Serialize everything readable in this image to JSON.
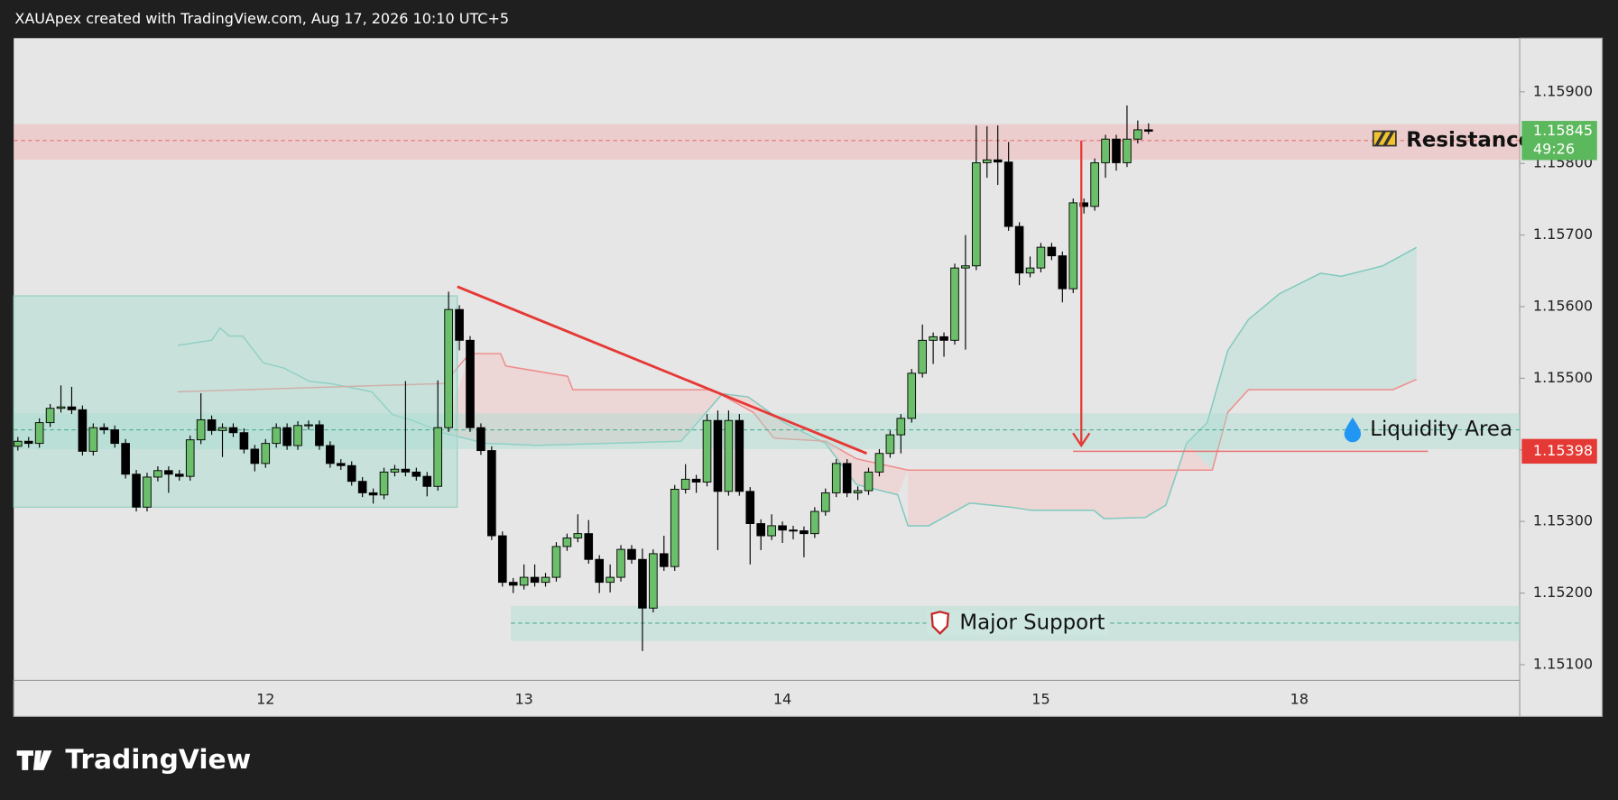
{
  "header": "XAUApex created with TradingView.com, Aug 17, 2026 10:10 UTC+5",
  "logo": "TradingView",
  "chart_data": {
    "type": "candlestick",
    "categories": [
      null,
      null,
      null,
      null,
      null,
      null,
      null,
      null,
      null,
      null,
      null,
      null,
      null,
      null,
      null,
      null,
      null,
      null,
      null,
      null,
      null,
      null,
      null,
      "12",
      null,
      null,
      null,
      null,
      null,
      null,
      null,
      null,
      null,
      null,
      null,
      null,
      null,
      null,
      null,
      null,
      null,
      null,
      null,
      null,
      null,
      null,
      null,
      "13",
      null,
      null,
      null,
      null,
      null,
      null,
      null,
      null,
      null,
      null,
      null,
      null,
      null,
      null,
      null,
      null,
      null,
      null,
      null,
      null,
      null,
      null,
      null,
      "14",
      null,
      null,
      null,
      null,
      null,
      null,
      null,
      null,
      null,
      null,
      null,
      null,
      null,
      null,
      null,
      null,
      null,
      null,
      null,
      null,
      null,
      null,
      null,
      "15",
      null,
      null,
      null,
      null,
      null,
      null,
      null,
      null,
      null,
      null,
      null,
      null,
      null,
      null,
      null,
      null,
      null,
      null,
      null,
      null,
      null,
      null,
      null,
      "18"
    ],
    "open": [
      1.15405,
      1.15412,
      1.15409,
      1.15438,
      1.15458,
      1.1546,
      1.15456,
      1.15398,
      1.15431,
      1.15428,
      1.15409,
      1.15366,
      1.1532,
      1.15362,
      1.15371,
      1.15366,
      1.15363,
      1.15414,
      1.15442,
      1.15427,
      1.15431,
      1.15424,
      1.15401,
      1.15381,
      1.15409,
      1.15431,
      1.15406,
      1.15434,
      1.15435,
      1.15406,
      1.15381,
      1.15378,
      1.15356,
      1.1534,
      1.15337,
      1.15369,
      1.15373,
      1.15369,
      1.15363,
      1.15349,
      1.15431,
      1.15596,
      1.15553,
      1.15431,
      1.15399,
      1.1528,
      1.15215,
      1.15211,
      1.15222,
      1.15215,
      1.15222,
      1.15265,
      1.15277,
      1.15283,
      1.15247,
      1.15215,
      1.15222,
      1.15261,
      1.15247,
      1.15179,
      1.15255,
      1.15237,
      1.15345,
      1.15359,
      1.15355,
      1.15441,
      1.15342,
      1.15441,
      1.15342,
      1.15297,
      1.1528,
      1.15294,
      1.15288,
      1.15287,
      1.15283,
      1.15314,
      1.1534,
      1.15381,
      1.1534,
      1.15343,
      1.15369,
      1.15395,
      1.15421,
      1.15444,
      1.15507,
      1.15553,
      1.15558,
      1.15553,
      1.15654,
      1.15657,
      1.15801,
      1.15805,
      1.15802,
      1.15712,
      1.15647,
      1.15654,
      1.15683,
      1.15671,
      1.15625,
      1.15745,
      1.1574,
      1.15801,
      1.15834,
      1.15801,
      1.15834,
      1.15847,
      null,
      null,
      null,
      null,
      null,
      null,
      null,
      null,
      null,
      null,
      null,
      null,
      null,
      null
    ],
    "high": [
      1.15418,
      1.15418,
      1.15444,
      1.15464,
      1.1549,
      1.15488,
      1.15462,
      1.15437,
      1.15437,
      1.15434,
      1.15415,
      1.15372,
      1.15368,
      1.15377,
      1.15377,
      1.15372,
      1.1542,
      1.15479,
      1.15448,
      1.15437,
      1.15437,
      1.1543,
      1.15407,
      1.15415,
      1.15437,
      1.15437,
      1.1544,
      1.15441,
      1.15441,
      1.15412,
      1.15387,
      1.15384,
      1.15362,
      1.15346,
      1.15375,
      1.15379,
      1.15496,
      1.15375,
      1.15369,
      1.15497,
      1.15621,
      1.15602,
      1.15559,
      1.15437,
      1.15405,
      1.15286,
      1.15221,
      1.1524,
      1.1524,
      1.15228,
      1.15271,
      1.15283,
      1.1531,
      1.15302,
      1.15253,
      1.1524,
      1.15267,
      1.15267,
      1.15262,
      1.15261,
      1.1528,
      1.15351,
      1.1538,
      1.15365,
      1.1545,
      1.15455,
      1.15455,
      1.1545,
      1.15348,
      1.15303,
      1.1531,
      1.153,
      1.15294,
      1.15293,
      1.1532,
      1.15346,
      1.15387,
      1.15387,
      1.15349,
      1.15375,
      1.15401,
      1.15427,
      1.1545,
      1.15513,
      1.15575,
      1.15564,
      1.15564,
      1.1566,
      1.157,
      1.15853,
      1.15852,
      1.15853,
      1.1583,
      1.15718,
      1.1567,
      1.15689,
      1.15689,
      1.15677,
      1.15751,
      1.15751,
      1.15807,
      1.1584,
      1.1584,
      1.15881,
      1.1586,
      1.15856,
      null,
      null,
      null,
      null,
      null,
      null,
      null,
      null,
      null,
      null,
      null,
      null,
      null,
      null
    ],
    "low": [
      1.15399,
      1.15403,
      1.15403,
      1.15432,
      1.15452,
      1.1545,
      1.15392,
      1.15392,
      1.15422,
      1.15403,
      1.1536,
      1.15314,
      1.15314,
      1.15356,
      1.1534,
      1.15357,
      1.15357,
      1.15408,
      1.15421,
      1.1539,
      1.15418,
      1.15395,
      1.1537,
      1.15375,
      1.15403,
      1.154,
      1.154,
      1.15428,
      1.154,
      1.15375,
      1.15372,
      1.1535,
      1.15334,
      1.15325,
      1.15331,
      1.15363,
      1.15363,
      1.15357,
      1.15335,
      1.15343,
      1.15425,
      1.15539,
      1.15425,
      1.15393,
      1.15274,
      1.15209,
      1.152,
      1.15205,
      1.15209,
      1.15209,
      1.15216,
      1.15259,
      1.15271,
      1.15241,
      1.152,
      1.15201,
      1.15216,
      1.15241,
      1.15119,
      1.15173,
      1.15231,
      1.15231,
      1.15339,
      1.1534,
      1.15349,
      1.1526,
      1.15336,
      1.15336,
      1.1524,
      1.1526,
      1.15274,
      1.1527,
      1.15275,
      1.1525,
      1.15277,
      1.15308,
      1.15334,
      1.15334,
      1.1533,
      1.15337,
      1.15363,
      1.15389,
      1.15395,
      1.15438,
      1.15501,
      1.1552,
      1.1553,
      1.15547,
      1.1554,
      1.15651,
      1.1578,
      1.1577,
      1.15706,
      1.1563,
      1.15641,
      1.15648,
      1.15665,
      1.15606,
      1.15619,
      1.1573,
      1.15734,
      1.1578,
      1.1579,
      1.15795,
      1.15828,
      1.15841,
      null,
      null,
      null,
      null,
      null,
      null,
      null,
      null,
      null,
      null,
      null,
      null,
      null,
      null
    ],
    "close": [
      1.15412,
      1.15409,
      1.15438,
      1.15458,
      1.1546,
      1.15456,
      1.15398,
      1.15431,
      1.15428,
      1.15409,
      1.15366,
      1.1532,
      1.15362,
      1.15371,
      1.15366,
      1.15363,
      1.15414,
      1.15442,
      1.15427,
      1.15431,
      1.15424,
      1.15401,
      1.15381,
      1.15409,
      1.15431,
      1.15406,
      1.15434,
      1.15435,
      1.15406,
      1.15381,
      1.15378,
      1.15356,
      1.1534,
      1.15337,
      1.15369,
      1.15373,
      1.15369,
      1.15363,
      1.15349,
      1.15431,
      1.15596,
      1.15553,
      1.15431,
      1.15399,
      1.1528,
      1.15215,
      1.15211,
      1.15222,
      1.15215,
      1.15222,
      1.15265,
      1.15277,
      1.15283,
      1.15247,
      1.15215,
      1.15222,
      1.15261,
      1.15247,
      1.15179,
      1.15255,
      1.15237,
      1.15345,
      1.15359,
      1.15355,
      1.15441,
      1.15342,
      1.15441,
      1.15342,
      1.15297,
      1.1528,
      1.15294,
      1.15288,
      1.15287,
      1.15283,
      1.15314,
      1.1534,
      1.15381,
      1.1534,
      1.15343,
      1.15369,
      1.15395,
      1.15421,
      1.15444,
      1.15507,
      1.15553,
      1.15558,
      1.15553,
      1.15654,
      1.15657,
      1.15801,
      1.15805,
      1.15802,
      1.15712,
      1.15647,
      1.15654,
      1.15683,
      1.15671,
      1.15625,
      1.15745,
      1.1574,
      1.15801,
      1.15834,
      1.15801,
      1.15834,
      1.15847,
      1.15845,
      null,
      null,
      null,
      null,
      null,
      null,
      null,
      null,
      null,
      null,
      null,
      null,
      null,
      null
    ],
    "up_color": "#6cbf6a",
    "down_color": "#000000",
    "ylim": [
      1.15078,
      1.15975
    ],
    "yticks": [
      {
        "value": 1.151,
        "label": "1.15100"
      },
      {
        "value": 1.152,
        "label": "1.15200"
      },
      {
        "value": 1.153,
        "label": "1.15300"
      },
      {
        "value": 1.154,
        "label": "1.15400"
      },
      {
        "value": 1.155,
        "label": "1.15500"
      },
      {
        "value": 1.156,
        "label": "1.15600"
      },
      {
        "value": 1.157,
        "label": "1.15700"
      },
      {
        "value": 1.158,
        "label": "1.15800"
      },
      {
        "value": 1.159,
        "label": "1.15900"
      }
    ],
    "grid": false,
    "zones": [
      {
        "label": "Resistance",
        "top": 1.15855,
        "bottom": 1.15805,
        "level": 1.15832,
        "color": "#f4a7a7"
      },
      {
        "label": "Liquidity Area",
        "top": 1.15451,
        "bottom": 1.15401,
        "level": 1.15428,
        "color": "#a6dccf"
      },
      {
        "label": "Major Support",
        "top": 1.15182,
        "bottom": 1.15133,
        "level": 1.15158,
        "color": "#a6dccf"
      }
    ],
    "range_box": {
      "top": 1.15615,
      "bottom": 1.1532
    },
    "trendline": {
      "start": 1.15628,
      "end": 1.15395,
      "color": "#e53935"
    },
    "arrow": {
      "from": 1.15832,
      "to": 1.15406,
      "color": "#e53935"
    },
    "last_price": 1.15845,
    "countdown": "49:26",
    "marked_price": 1.15398
  }
}
